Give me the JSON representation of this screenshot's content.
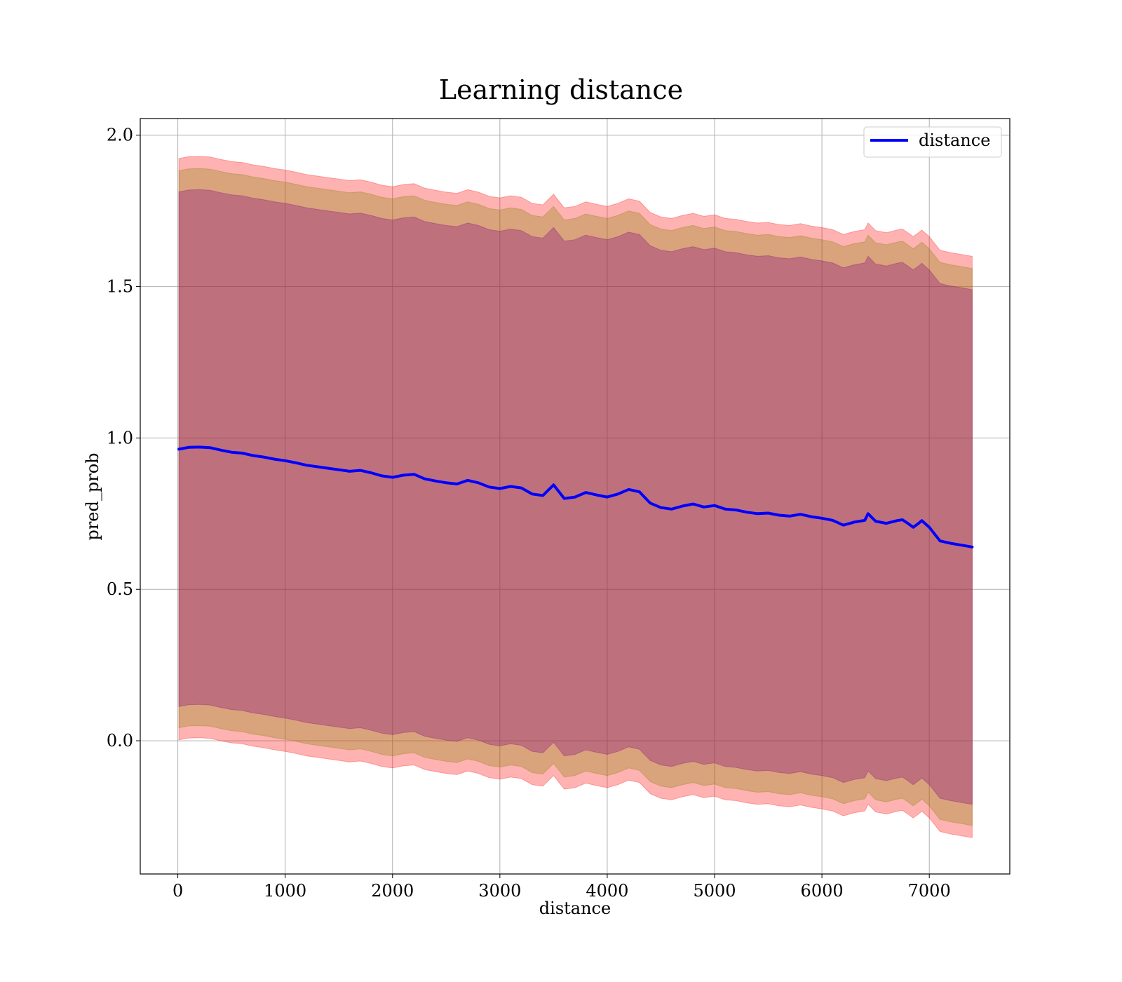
{
  "chart_data": {
    "type": "line",
    "title": "Learning distance",
    "xlabel": "distance",
    "ylabel": "pred_prob",
    "xlim": [
      -350,
      7750
    ],
    "ylim": [
      -0.44,
      2.055
    ],
    "xticks": [
      0,
      1000,
      2000,
      3000,
      4000,
      5000,
      6000,
      7000
    ],
    "xtick_labels": [
      "0",
      "1000",
      "2000",
      "3000",
      "4000",
      "5000",
      "6000",
      "7000"
    ],
    "yticks": [
      0.0,
      0.5,
      1.0,
      1.5,
      2.0
    ],
    "ytick_labels": [
      "0.0",
      "0.5",
      "1.0",
      "1.5",
      "2.0"
    ],
    "grid": true,
    "legend": {
      "position": "upper right",
      "entries": [
        "distance"
      ]
    },
    "x": [
      10,
      100,
      200,
      300,
      400,
      500,
      600,
      700,
      800,
      900,
      1000,
      1100,
      1200,
      1300,
      1400,
      1500,
      1600,
      1700,
      1800,
      1900,
      2000,
      2100,
      2200,
      2300,
      2400,
      2500,
      2600,
      2700,
      2800,
      2900,
      3000,
      3100,
      3200,
      3300,
      3400,
      3500,
      3600,
      3700,
      3800,
      3900,
      4000,
      4100,
      4200,
      4300,
      4400,
      4500,
      4600,
      4700,
      4800,
      4900,
      5000,
      5100,
      5200,
      5300,
      5400,
      5500,
      5600,
      5700,
      5800,
      5900,
      6000,
      6100,
      6200,
      6300,
      6400,
      6430,
      6500,
      6600,
      6700,
      6750,
      6800,
      6850,
      6900,
      6930,
      7000,
      7100,
      7200,
      7300,
      7400
    ],
    "series": [
      {
        "name": "distance",
        "color": "#0000ff",
        "values": [
          0.963,
          0.969,
          0.97,
          0.968,
          0.96,
          0.953,
          0.95,
          0.942,
          0.937,
          0.93,
          0.925,
          0.918,
          0.91,
          0.905,
          0.9,
          0.895,
          0.89,
          0.893,
          0.885,
          0.875,
          0.87,
          0.877,
          0.88,
          0.865,
          0.858,
          0.852,
          0.848,
          0.86,
          0.852,
          0.838,
          0.833,
          0.84,
          0.835,
          0.815,
          0.81,
          0.845,
          0.8,
          0.805,
          0.82,
          0.812,
          0.805,
          0.815,
          0.83,
          0.822,
          0.785,
          0.77,
          0.765,
          0.775,
          0.782,
          0.772,
          0.777,
          0.765,
          0.762,
          0.755,
          0.75,
          0.752,
          0.745,
          0.742,
          0.748,
          0.74,
          0.735,
          0.728,
          0.712,
          0.722,
          0.728,
          0.75,
          0.725,
          0.718,
          0.727,
          0.73,
          0.718,
          0.705,
          0.718,
          0.727,
          0.705,
          0.66,
          0.652,
          0.646,
          0.64
        ],
        "bands": [
          {
            "fill": "#ff0000",
            "opacity": 0.3,
            "halfwidth": [
              0.96,
              0.96,
              0.96,
              0.96,
              0.96,
              0.96,
              0.96,
              0.96,
              0.96,
              0.96,
              0.96,
              0.96,
              0.96,
              0.96,
              0.96,
              0.96,
              0.96,
              0.96,
              0.96,
              0.96,
              0.96,
              0.96,
              0.96,
              0.96,
              0.96,
              0.96,
              0.96,
              0.96,
              0.96,
              0.96,
              0.96,
              0.96,
              0.96,
              0.96,
              0.96,
              0.96,
              0.96,
              0.96,
              0.96,
              0.96,
              0.96,
              0.96,
              0.96,
              0.96,
              0.96,
              0.96,
              0.96,
              0.96,
              0.96,
              0.96,
              0.96,
              0.96,
              0.96,
              0.96,
              0.96,
              0.96,
              0.96,
              0.96,
              0.96,
              0.96,
              0.96,
              0.96,
              0.96,
              0.96,
              0.96,
              0.96,
              0.96,
              0.96,
              0.96,
              0.96,
              0.96,
              0.96,
              0.96,
              0.96,
              0.96,
              0.96,
              0.96,
              0.96,
              0.96
            ]
          },
          {
            "fill": "#808000",
            "opacity": 0.3,
            "halfwidth": [
              0.92,
              0.92,
              0.92,
              0.92,
              0.92,
              0.92,
              0.92,
              0.92,
              0.92,
              0.92,
              0.92,
              0.92,
              0.92,
              0.92,
              0.92,
              0.92,
              0.92,
              0.92,
              0.92,
              0.92,
              0.92,
              0.92,
              0.92,
              0.92,
              0.92,
              0.92,
              0.92,
              0.92,
              0.92,
              0.92,
              0.92,
              0.92,
              0.92,
              0.92,
              0.92,
              0.92,
              0.92,
              0.92,
              0.92,
              0.92,
              0.92,
              0.92,
              0.92,
              0.92,
              0.92,
              0.92,
              0.92,
              0.92,
              0.92,
              0.92,
              0.92,
              0.92,
              0.92,
              0.92,
              0.92,
              0.92,
              0.92,
              0.92,
              0.92,
              0.92,
              0.92,
              0.92,
              0.92,
              0.92,
              0.92,
              0.92,
              0.92,
              0.92,
              0.92,
              0.92,
              0.92,
              0.92,
              0.92,
              0.92,
              0.92,
              0.92,
              0.92,
              0.92,
              0.92
            ]
          },
          {
            "fill": "#800080",
            "opacity": 0.3,
            "halfwidth": [
              0.85,
              0.85,
              0.85,
              0.85,
              0.85,
              0.85,
              0.85,
              0.85,
              0.85,
              0.85,
              0.85,
              0.85,
              0.85,
              0.85,
              0.85,
              0.85,
              0.85,
              0.85,
              0.85,
              0.85,
              0.85,
              0.85,
              0.85,
              0.85,
              0.85,
              0.85,
              0.85,
              0.85,
              0.85,
              0.85,
              0.85,
              0.85,
              0.85,
              0.85,
              0.85,
              0.85,
              0.85,
              0.85,
              0.85,
              0.85,
              0.85,
              0.85,
              0.85,
              0.85,
              0.85,
              0.85,
              0.85,
              0.85,
              0.85,
              0.85,
              0.85,
              0.85,
              0.85,
              0.85,
              0.85,
              0.85,
              0.85,
              0.85,
              0.85,
              0.85,
              0.85,
              0.85,
              0.85,
              0.85,
              0.85,
              0.85,
              0.85,
              0.85,
              0.85,
              0.85,
              0.85,
              0.85,
              0.85,
              0.85,
              0.85,
              0.85,
              0.85,
              0.85,
              0.85
            ]
          }
        ]
      }
    ]
  }
}
